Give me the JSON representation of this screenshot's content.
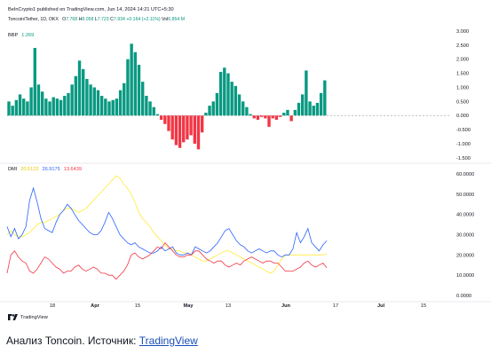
{
  "header": {
    "publish_line": "BeInCrypto1 published on TradingView.com, Jun 14, 2024 14:21 UTC+5:30",
    "symbol": "Toncoin/Tether, 1D, OKX",
    "ohlc": {
      "o_label": "O",
      "o_value": "7.768",
      "h_label": "H",
      "h_value": "8.058",
      "l_label": "L",
      "l_value": "7.723",
      "c_label": "C",
      "c_value": "7.934",
      "change": "+0.164 (+2.11%)",
      "vol_label": "Vol",
      "vol_value": "6.854 M"
    }
  },
  "bbp_legend": {
    "name": "BBP",
    "value": "1.269"
  },
  "dmi_legend": {
    "name": "DMI",
    "v1": "20.5122",
    "v2": "26.9175",
    "v3": "13.6439"
  },
  "colors": {
    "positive": "#089981",
    "negative": "#f23645",
    "plus_di": "#2962ff",
    "minus_di": "#f23645",
    "adx": "#ffeb3b",
    "grid": "#e0e3eb"
  },
  "x_axis": [
    {
      "label": "18",
      "bold": false
    },
    {
      "label": "Apr",
      "bold": true
    },
    {
      "label": "15",
      "bold": false
    },
    {
      "label": "May",
      "bold": true
    },
    {
      "label": "13",
      "bold": false
    },
    {
      "label": "Jun",
      "bold": true
    },
    {
      "label": "17",
      "bold": false
    },
    {
      "label": "Jul",
      "bold": true
    },
    {
      "label": "15",
      "bold": false
    }
  ],
  "footer": {
    "logo_text": "TradingView",
    "logo_icon": "tradingview-logo-icon"
  },
  "caption": {
    "text": "Анализ Toncoin. Источник: ",
    "link": "TradingView"
  },
  "chart_data": [
    {
      "type": "bar",
      "title": "BBP",
      "ylim": [
        -1.6,
        3.0
      ],
      "y_ticks": [
        "3.000",
        "2.500",
        "2.000",
        "1.500",
        "1.000",
        "0.500",
        "0.000",
        "-0.500",
        "-1.000",
        "-1.500"
      ],
      "y_tick_values": [
        3.0,
        2.5,
        2.0,
        1.5,
        1.0,
        0.5,
        0.0,
        -0.5,
        -1.0,
        -1.5
      ],
      "values": [
        0.5,
        0.35,
        0.55,
        0.75,
        0.6,
        0.5,
        1.0,
        2.4,
        1.1,
        0.85,
        0.6,
        0.5,
        0.65,
        0.6,
        0.55,
        0.7,
        0.8,
        1.1,
        1.4,
        1.95,
        1.65,
        1.3,
        1.1,
        1.0,
        0.9,
        0.7,
        0.6,
        0.5,
        0.55,
        0.6,
        0.9,
        1.15,
        2.0,
        2.55,
        2.25,
        1.8,
        1.2,
        0.7,
        0.5,
        0.3,
        0.05,
        -0.15,
        -0.3,
        -0.55,
        -0.85,
        -1.05,
        -1.15,
        -0.95,
        -0.85,
        -0.7,
        -1.0,
        -1.2,
        -0.6,
        0.1,
        0.35,
        0.5,
        0.8,
        1.55,
        1.7,
        1.5,
        1.2,
        1.05,
        0.75,
        0.5,
        0.3,
        0.05,
        -0.1,
        -0.15,
        -0.05,
        -0.1,
        -0.4,
        -0.1,
        -0.15,
        -0.05,
        0.1,
        0.2,
        -0.2,
        0.2,
        0.45,
        0.75,
        1.6,
        0.5,
        0.35,
        0.45,
        0.8,
        1.25
      ]
    },
    {
      "type": "line",
      "title": "DMI",
      "ylim": [
        0,
        60
      ],
      "y_ticks": [
        "60.0000",
        "50.0000",
        "40.0000",
        "30.0000",
        "20.0000",
        "10.0000",
        "0.0000"
      ],
      "y_tick_values": [
        60,
        50,
        40,
        30,
        20,
        10,
        0
      ],
      "series": [
        {
          "name": "20.5122",
          "color": "#ffeb3b",
          "values": [
            30,
            32,
            30,
            29,
            29,
            30,
            31,
            33,
            35,
            36,
            36,
            37,
            38,
            39,
            40,
            42,
            43,
            43,
            42,
            41,
            42,
            43,
            45,
            47,
            49,
            51,
            53,
            55,
            57,
            59,
            58,
            55,
            53,
            50,
            46,
            41,
            38,
            36,
            34,
            31,
            29,
            27,
            25,
            23,
            23,
            22,
            22,
            21,
            21,
            20,
            19,
            18,
            17,
            17,
            18,
            19,
            20,
            21,
            22,
            22,
            21,
            20,
            19,
            18,
            17,
            16,
            15,
            14,
            13,
            12,
            11,
            12,
            15,
            18,
            20,
            20,
            20,
            20,
            20,
            20,
            20,
            20,
            20,
            20,
            20,
            20.5
          ]
        },
        {
          "name": "26.9175",
          "color": "#2962ff",
          "values": [
            34,
            29,
            33,
            28,
            30,
            34,
            47,
            53,
            46,
            38,
            33,
            32,
            31,
            36,
            40,
            42,
            45,
            43,
            40,
            37,
            35,
            33,
            31,
            30,
            30,
            32,
            36,
            41,
            38,
            34,
            30,
            28,
            26,
            25,
            26,
            24,
            23,
            22,
            21,
            21,
            22,
            24,
            22,
            23,
            24,
            21,
            20,
            20,
            21,
            20,
            24,
            23,
            22,
            21,
            22,
            24,
            26,
            29,
            32,
            33,
            30,
            27,
            25,
            24,
            22,
            21,
            22,
            23,
            22,
            21,
            22,
            22,
            20,
            19,
            20,
            20,
            23,
            31,
            26,
            29,
            33,
            26,
            24,
            22,
            25,
            27
          ]
        },
        {
          "name": "13.6439",
          "color": "#f23645",
          "values": [
            11,
            20,
            22,
            19,
            17,
            16,
            12,
            11,
            13,
            16,
            19,
            18,
            16,
            14,
            13,
            11,
            12,
            12,
            14,
            15,
            13,
            12,
            13,
            14,
            13,
            11,
            11,
            10,
            10,
            8,
            10,
            12,
            15,
            20,
            21,
            19,
            18,
            19,
            20,
            22,
            24,
            23,
            26,
            24,
            22,
            20,
            19,
            19,
            20,
            20,
            22,
            22,
            20,
            18,
            17,
            16,
            17,
            17,
            15,
            14,
            15,
            16,
            15,
            17,
            18,
            19,
            18,
            17,
            16,
            17,
            17,
            16,
            16,
            14,
            12,
            12,
            12,
            13,
            14,
            16,
            17,
            15,
            14,
            15,
            16,
            13.6
          ]
        }
      ]
    }
  ]
}
